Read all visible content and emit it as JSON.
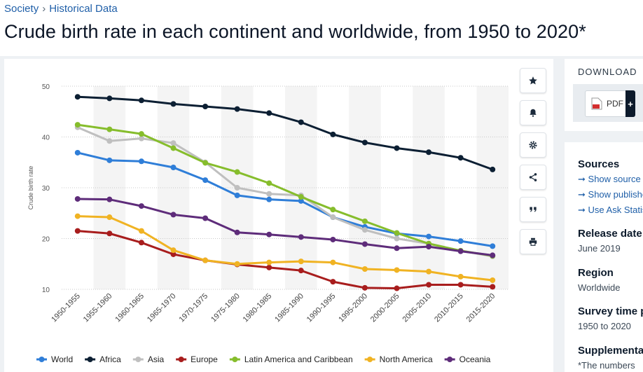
{
  "breadcrumb": {
    "items": [
      "Society",
      "Historical Data"
    ],
    "separator": "›"
  },
  "page_title": "Crude birth rate in each continent and worldwide, from 1950 to 2020*",
  "chart_data": {
    "type": "line",
    "title": "Crude birth rate in each continent and worldwide, from 1950 to 2020*",
    "ylabel": "Crude birth rate",
    "xlabel": "",
    "ylim": [
      10,
      50
    ],
    "yticks": [
      10,
      20,
      30,
      40,
      50
    ],
    "grid": true,
    "legend_position": "bottom",
    "categories": [
      "1950-1955",
      "1955-1960",
      "1960-1965",
      "1965-1970",
      "1970-1975",
      "1975-1980",
      "1980-1985",
      "1985-1990",
      "1990-1995",
      "1995-2000",
      "2000-2005",
      "2005-2010",
      "2010-2015",
      "2015-2020"
    ],
    "series": [
      {
        "name": "World",
        "color": "#2f7ed8",
        "values": [
          36.9,
          35.4,
          35.2,
          34.0,
          31.5,
          28.5,
          27.7,
          27.4,
          24.2,
          22.3,
          21.0,
          20.4,
          19.5,
          18.5
        ]
      },
      {
        "name": "Africa",
        "color": "#0c1f33",
        "values": [
          47.9,
          47.6,
          47.2,
          46.5,
          46.0,
          45.5,
          44.7,
          42.9,
          40.5,
          38.9,
          37.8,
          37.0,
          35.9,
          33.6
        ]
      },
      {
        "name": "Asia",
        "color": "#bfbfbf",
        "values": [
          41.9,
          39.2,
          39.7,
          38.8,
          35.0,
          30.0,
          28.8,
          28.5,
          24.2,
          21.7,
          20.0,
          19.0,
          17.6,
          16.5
        ]
      },
      {
        "name": "Europe",
        "color": "#a81d1d",
        "values": [
          21.5,
          21.0,
          19.2,
          16.9,
          15.7,
          14.9,
          14.3,
          13.7,
          11.5,
          10.3,
          10.2,
          10.9,
          10.9,
          10.5
        ]
      },
      {
        "name": "Latin America and Caribbean",
        "color": "#86bd2c",
        "values": [
          42.4,
          41.5,
          40.6,
          37.8,
          34.9,
          33.1,
          30.9,
          28.2,
          25.7,
          23.4,
          21.1,
          19.0,
          17.6,
          16.6
        ]
      },
      {
        "name": "North America",
        "color": "#f0b323",
        "values": [
          24.4,
          24.2,
          21.5,
          17.7,
          15.7,
          15.0,
          15.3,
          15.5,
          15.3,
          14.0,
          13.8,
          13.5,
          12.5,
          11.8
        ]
      },
      {
        "name": "Oceania",
        "color": "#5e2c7a",
        "values": [
          27.8,
          27.7,
          26.4,
          24.7,
          24.0,
          21.2,
          20.8,
          20.3,
          19.8,
          18.9,
          18.1,
          18.4,
          17.5,
          16.7
        ]
      }
    ]
  },
  "actions": [
    {
      "name": "favorite",
      "icon": "★"
    },
    {
      "name": "notification",
      "icon": "bell"
    },
    {
      "name": "settings",
      "icon": "gear"
    },
    {
      "name": "share",
      "icon": "share"
    },
    {
      "name": "cite",
      "icon": "❝"
    },
    {
      "name": "print",
      "icon": "print"
    }
  ],
  "download": {
    "title": "DOWNLOAD",
    "pdf_label": "PDF",
    "plus": "+"
  },
  "info_panel": {
    "sources_title": "Sources",
    "links": [
      "Show source",
      "Show publisher",
      "Use Ask Statista"
    ],
    "release_title": "Release date",
    "release_value": "June 2019",
    "region_title": "Region",
    "region_value": "Worldwide",
    "survey_title": "Survey time period",
    "survey_value": "1950 to 2020",
    "supp_title": "Supplementary notes",
    "supp_value": "*The numbers"
  }
}
